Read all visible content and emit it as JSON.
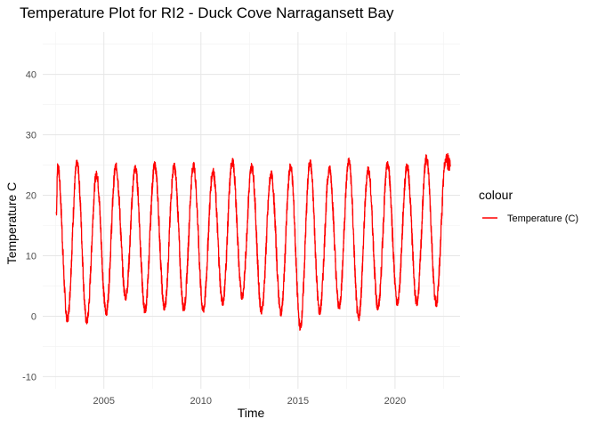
{
  "chart_data": {
    "type": "line",
    "title": "Temperature Plot for RI2 - Duck Cove Narragansett Bay",
    "xlabel": "Time",
    "ylabel": "Temperature C",
    "xlim": [
      2001.85,
      2023.35
    ],
    "ylim": [
      -12,
      47
    ],
    "x_ticks": [
      2005,
      2010,
      2015,
      2020
    ],
    "y_ticks": [
      -10,
      0,
      10,
      20,
      30,
      40
    ],
    "grid": true,
    "legend_position": "right",
    "legend_title": "colour",
    "series": [
      {
        "name": "Temperature (C)",
        "color": "#ff0000",
        "x_start": 2002.55,
        "x_end": 2022.85,
        "start_value": 17,
        "peak_time_of_year": 0.62,
        "annual_max": [
          24.9,
          25.3,
          23.5,
          24.8,
          24.5,
          25.0,
          24.8,
          24.9,
          24.0,
          25.6,
          24.8,
          23.5,
          24.8,
          25.4,
          24.4,
          25.7,
          24.3,
          25.1,
          24.8,
          26.2,
          26.0
        ],
        "annual_min": [
          -0.5,
          -0.9,
          0.6,
          3.2,
          1.0,
          1.4,
          1.3,
          1.0,
          2.3,
          3.3,
          0.9,
          0.6,
          -1.8,
          0.7,
          1.6,
          -0.3,
          1.4,
          2.2,
          2.2,
          2.1
        ]
      }
    ]
  }
}
